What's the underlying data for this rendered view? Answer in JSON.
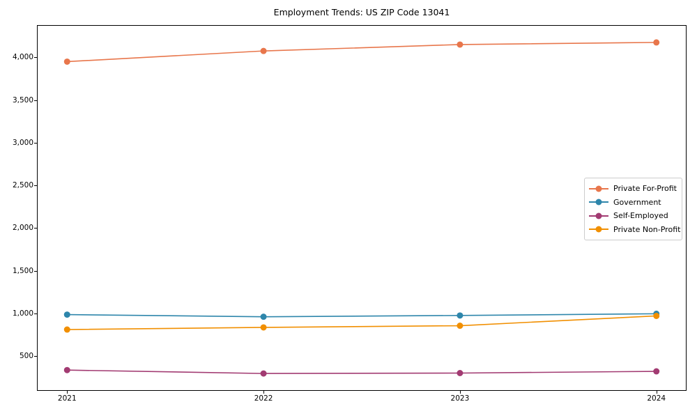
{
  "chart_data": {
    "type": "line",
    "title": "Employment Trends: US ZIP Code 13041",
    "xlabel": "",
    "ylabel": "",
    "x": [
      2021,
      2022,
      2023,
      2024
    ],
    "xtick_labels": [
      "2021",
      "2022",
      "2023",
      "2024"
    ],
    "yticks": [
      500,
      1000,
      1500,
      2000,
      2500,
      3000,
      3500,
      4000
    ],
    "ytick_labels": [
      "500",
      "1,000",
      "1,500",
      "2,000",
      "2,500",
      "3,000",
      "3,500",
      "4,000"
    ],
    "xlim": [
      2020.85,
      2024.15
    ],
    "ylim": [
      100,
      4370
    ],
    "grid": false,
    "legend_position": "center right",
    "marker": "o",
    "series": [
      {
        "name": "Private For-Profit",
        "color": "#E8764B",
        "values": [
          3950,
          4075,
          4150,
          4175
        ]
      },
      {
        "name": "Government",
        "color": "#2E86AB",
        "values": [
          985,
          960,
          975,
          995
        ]
      },
      {
        "name": "Self-Employed",
        "color": "#A23B72",
        "values": [
          335,
          295,
          300,
          320
        ]
      },
      {
        "name": "Private Non-Profit",
        "color": "#F18F01",
        "values": [
          810,
          835,
          855,
          970
        ]
      }
    ]
  }
}
